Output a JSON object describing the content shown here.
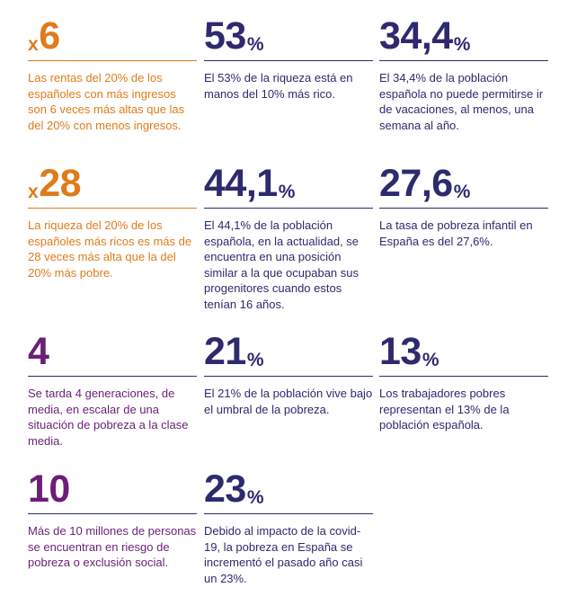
{
  "stats": [
    {
      "prefix": "x",
      "value": "6",
      "unit": "",
      "text": "Las rentas del 20% de los españoles con más ingresos son 6 veces más altas que las del 20% con menos ingresos.",
      "color": "#e07b1a"
    },
    {
      "prefix": "",
      "value": "53",
      "unit": "%",
      "text": "El 53% de la riqueza está en manos del 10% más rico.",
      "color": "#2d2a6e"
    },
    {
      "prefix": "",
      "value": "34,4",
      "unit": "%",
      "text": "El 34,4% de la población española no puede permitirse ir de vacaciones, al menos, una semana al año.",
      "color": "#2d2a6e"
    },
    {
      "prefix": "x",
      "value": "28",
      "unit": "",
      "text": "La riqueza del 20% de los españoles más ricos es más de 28 veces más alta que la del 20% más pobre.",
      "color": "#e07b1a"
    },
    {
      "prefix": "",
      "value": "44,1",
      "unit": "%",
      "text": "El 44,1% de la población española, en la actualidad, se encuentra en una posición similar a la que ocupaban sus progenitores cuando estos tenían 16 años.",
      "color": "#2d2a6e"
    },
    {
      "prefix": "",
      "value": "27,6",
      "unit": "%",
      "text": "La tasa de pobreza infantil en España es del 27,6%.",
      "color": "#2d2a6e"
    },
    {
      "prefix": "",
      "value": "4",
      "unit": "",
      "text": "Se tarda 4 generaciones, de media, en escalar de una situación de pobreza a la clase media.",
      "color": "#6b1e78"
    },
    {
      "prefix": "",
      "value": "21",
      "unit": "%",
      "text": "El 21% de la población vive bajo el umbral de la pobreza.",
      "color": "#2d2a6e"
    },
    {
      "prefix": "",
      "value": "13",
      "unit": "%",
      "text": "Los trabajadores pobres representan el 13% de la población española.",
      "color": "#2d2a6e"
    },
    {
      "prefix": "",
      "value": "10",
      "unit": "",
      "text": "Más de 10 millones de personas se encuentran en riesgo de pobreza o exclusión social.",
      "color": "#6b1e78"
    },
    {
      "prefix": "",
      "value": "23",
      "unit": "%",
      "text": "Debido al impacto de la covid-19, la pobreza en España se incrementó el pasado año casi un 23%.",
      "color": "#2d2a6e"
    }
  ]
}
